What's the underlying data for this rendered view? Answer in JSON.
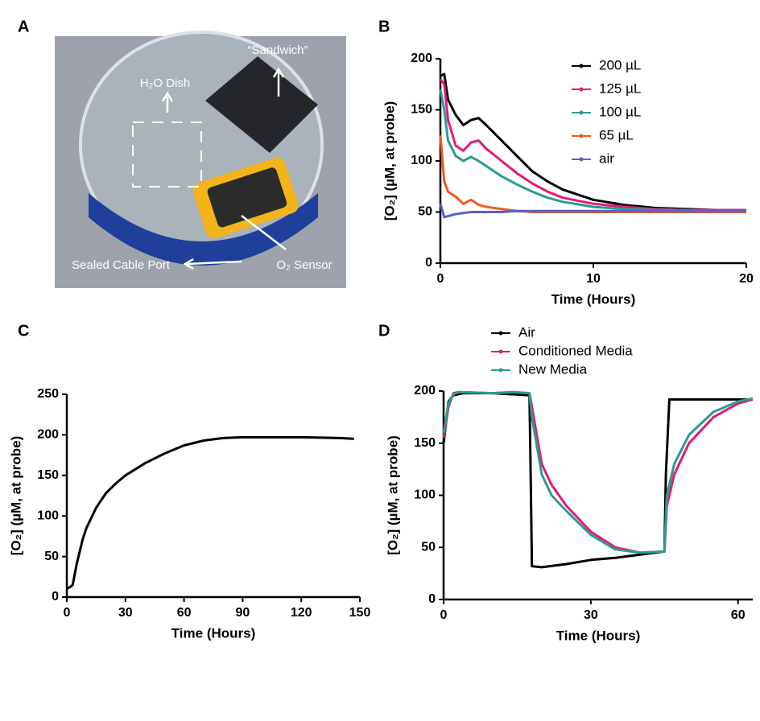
{
  "panel_labels": [
    "A",
    "B",
    "C",
    "D"
  ],
  "photo": {
    "labels": [
      "“Sandwich”",
      "H₂O Dish",
      "Sealed Cable Port",
      "O₂ Sensor"
    ]
  },
  "chart_data": [
    {
      "type": "line",
      "xlabel": "Time (Hours)",
      "ylabel": "[O₂] (µM, at probe)",
      "xlim": [
        0,
        20
      ],
      "ylim": [
        0,
        200
      ],
      "xticks": [
        0,
        10,
        20
      ],
      "yticks": [
        0,
        50,
        100,
        150,
        200
      ],
      "legend": "upper right",
      "x": [
        0,
        0.25,
        0.5,
        1,
        1.5,
        2,
        2.5,
        3,
        4,
        5,
        6,
        7,
        8,
        10,
        12,
        14,
        16,
        18,
        20
      ],
      "series": [
        {
          "name": "200 µL",
          "color": "#000000",
          "values": [
            183,
            185,
            160,
            145,
            135,
            140,
            142,
            135,
            120,
            105,
            90,
            80,
            72,
            62,
            57,
            54,
            53,
            52,
            52
          ]
        },
        {
          "name": "125 µL",
          "color": "#e6197a",
          "values": [
            180,
            175,
            140,
            115,
            110,
            118,
            120,
            112,
            100,
            88,
            78,
            70,
            64,
            58,
            55,
            53,
            52,
            52,
            52
          ]
        },
        {
          "name": "100 µL",
          "color": "#2a9d8f",
          "values": [
            170,
            150,
            120,
            105,
            100,
            104,
            100,
            95,
            85,
            77,
            70,
            64,
            60,
            55,
            53,
            52,
            52,
            51,
            51
          ]
        },
        {
          "name": "65 µL",
          "color": "#f05a22",
          "values": [
            125,
            80,
            70,
            65,
            58,
            62,
            57,
            55,
            53,
            51,
            50,
            50,
            50,
            50,
            50,
            50,
            50,
            50,
            50
          ]
        },
        {
          "name": "air",
          "color": "#5b5fc7",
          "values": [
            58,
            45,
            46,
            48,
            49,
            50,
            50,
            50,
            50,
            51,
            51,
            51,
            51,
            51,
            51,
            51,
            51,
            51,
            51
          ]
        }
      ]
    },
    {
      "type": "line",
      "xlabel": "Time (Hours)",
      "ylabel": "[O₂] (µM, at probe)",
      "xlim": [
        0,
        150
      ],
      "ylim": [
        0,
        250
      ],
      "xticks": [
        0,
        30,
        60,
        90,
        120,
        150
      ],
      "yticks": [
        0,
        50,
        100,
        150,
        200,
        250
      ],
      "x": [
        0,
        2,
        3,
        5,
        8,
        10,
        15,
        20,
        25,
        30,
        40,
        50,
        60,
        70,
        80,
        90,
        100,
        120,
        140,
        147
      ],
      "series": [
        {
          "color": "#000000",
          "values": [
            10,
            13,
            15,
            40,
            70,
            85,
            110,
            128,
            140,
            150,
            165,
            177,
            187,
            193,
            196,
            197,
            197,
            197,
            196,
            195
          ]
        }
      ]
    },
    {
      "type": "line",
      "xlabel": "Time (Hours)",
      "ylabel": "[O₂] (µM, at probe)",
      "xlim": [
        0,
        63
      ],
      "ylim": [
        0,
        200
      ],
      "xticks": [
        0,
        30,
        60
      ],
      "yticks": [
        0,
        50,
        100,
        150,
        200
      ],
      "legend": "upper left",
      "series": [
        {
          "name": "Air",
          "color": "#000000",
          "x": [
            0,
            1,
            2,
            4,
            10,
            17.5,
            17.8,
            18,
            20,
            25,
            30,
            35,
            40,
            45,
            45.3,
            46,
            50,
            55,
            60,
            63
          ],
          "values": [
            150,
            190,
            196,
            198,
            198,
            196,
            100,
            32,
            31,
            34,
            38,
            40,
            43,
            46,
            120,
            192,
            192,
            192,
            192,
            192
          ]
        },
        {
          "name": "Conditioned Media",
          "color": "#e6197a",
          "x": [
            0,
            1,
            2,
            3,
            10,
            14,
            17.5,
            18,
            20,
            22,
            25,
            30,
            35,
            40,
            45,
            45.5,
            47,
            50,
            55,
            60,
            63
          ],
          "values": [
            155,
            185,
            198,
            199,
            198,
            199,
            198,
            185,
            130,
            110,
            90,
            65,
            50,
            45,
            46,
            90,
            120,
            150,
            175,
            188,
            192
          ]
        },
        {
          "name": "New Media",
          "color": "#2a9d8f",
          "x": [
            0,
            1,
            2,
            3,
            10,
            14,
            17.5,
            18,
            20,
            22,
            25,
            30,
            35,
            40,
            45,
            45.5,
            47,
            50,
            55,
            60,
            63
          ],
          "values": [
            160,
            188,
            197,
            199,
            198,
            199,
            198,
            175,
            120,
            100,
            85,
            62,
            48,
            45,
            46,
            100,
            130,
            158,
            180,
            190,
            193
          ]
        }
      ]
    }
  ]
}
